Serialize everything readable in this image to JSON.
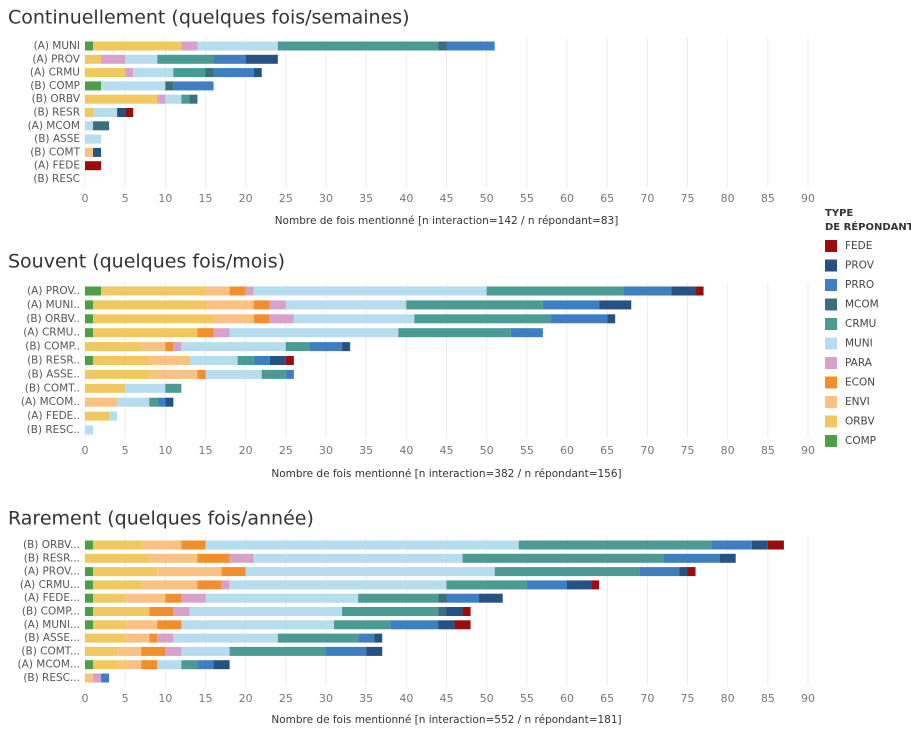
{
  "legend": {
    "title": [
      "TYPE",
      "DE RÉPONDANT"
    ],
    "series": [
      {
        "name": "FEDE",
        "color": "#9b0d0d"
      },
      {
        "name": "PROV",
        "color": "#245282"
      },
      {
        "name": "PRRO",
        "color": "#3d7fc1"
      },
      {
        "name": "MCOM",
        "color": "#3b6f7d"
      },
      {
        "name": "CRMU",
        "color": "#4a9b93"
      },
      {
        "name": "MUNI",
        "color": "#b6dcef"
      },
      {
        "name": "PARA",
        "color": "#d7a1c9"
      },
      {
        "name": "ECON",
        "color": "#f28f2c"
      },
      {
        "name": "ENVI",
        "color": "#f9c283"
      },
      {
        "name": "ORBV",
        "color": "#f1c75f"
      },
      {
        "name": "COMP",
        "color": "#4c9e47"
      }
    ]
  },
  "chart_data": [
    {
      "type": "stacked-barh",
      "title": "Continuellement (quelques fois/semaines)",
      "x_label": "Nombre de fois mentionné [n interaction=142 / n répondant=83]",
      "categories": [
        "(A) MUNI",
        "(A) PROV",
        "(A) CRMU",
        "(B) COMP",
        "(B) ORBV",
        "(B) RESR",
        "(A) MCOM",
        "(B) ASSE",
        "(B) COMT",
        "(A) FEDE",
        "(B) RESC"
      ],
      "series": [
        {
          "values": [
            0,
            0,
            0,
            0,
            0,
            1,
            0,
            0,
            0,
            2,
            0
          ]
        },
        {
          "values": [
            0,
            4,
            1,
            0,
            0,
            1,
            0,
            0,
            1,
            0,
            0
          ]
        },
        {
          "values": [
            6,
            4,
            5,
            5,
            0,
            0,
            0,
            0,
            0,
            0,
            0
          ]
        },
        {
          "values": [
            1,
            0,
            1,
            1,
            1,
            0,
            2,
            0,
            0,
            0,
            0
          ]
        },
        {
          "values": [
            20,
            7,
            4,
            0,
            1,
            0,
            0,
            0,
            0,
            0,
            0
          ]
        },
        {
          "values": [
            10,
            4,
            5,
            8,
            2,
            3,
            1,
            2,
            0,
            0,
            0
          ]
        },
        {
          "values": [
            2,
            3,
            1,
            0,
            1,
            0,
            0,
            0,
            0,
            0,
            0
          ]
        },
        {
          "values": [
            0,
            0,
            0,
            0,
            0,
            0,
            0,
            0,
            0,
            0,
            0
          ]
        },
        {
          "values": [
            0,
            0,
            0,
            0,
            0,
            0,
            0,
            0,
            1,
            0,
            0
          ]
        },
        {
          "values": [
            11,
            2,
            5,
            0,
            9,
            1,
            0,
            0,
            0,
            0,
            0
          ]
        },
        {
          "values": [
            1,
            0,
            0,
            2,
            0,
            0,
            0,
            0,
            0,
            0,
            0
          ]
        }
      ],
      "xlim": [
        0,
        90
      ],
      "xticks": [
        0,
        5,
        10,
        15,
        20,
        25,
        30,
        35,
        40,
        45,
        50,
        55,
        60,
        65,
        70,
        75,
        80,
        85,
        90
      ],
      "grid": true
    },
    {
      "type": "stacked-barh",
      "title": "Souvent (quelques fois/mois)",
      "x_label": "Nombre de fois mentionné [n interaction=382 / n répondant=156]",
      "categories": [
        "(A) PROV..",
        "(A) MUNI..",
        "(B) ORBV..",
        "(A) CRMU..",
        "(B) COMP..",
        "(B) RESR..",
        "(B) ASSE..",
        "(B) COMT..",
        "(A) MCOM..",
        "(A) FEDE..",
        "(B) RESC.."
      ],
      "series": [
        {
          "values": [
            1,
            0,
            0,
            0,
            0,
            1,
            0,
            0,
            0,
            0,
            0
          ]
        },
        {
          "values": [
            3,
            4,
            1,
            0,
            1,
            2,
            0,
            0,
            1,
            0,
            0
          ]
        },
        {
          "values": [
            6,
            7,
            7,
            4,
            4,
            2,
            1,
            0,
            1,
            0,
            0
          ]
        },
        {
          "values": [
            0,
            0,
            0,
            0,
            0,
            0,
            0,
            0,
            0,
            0,
            0
          ]
        },
        {
          "values": [
            17,
            17,
            17,
            14,
            3,
            2,
            3,
            2,
            1,
            0,
            0
          ]
        },
        {
          "values": [
            29,
            15,
            15,
            21,
            13,
            6,
            7,
            5,
            4,
            1,
            1
          ]
        },
        {
          "values": [
            1,
            2,
            3,
            2,
            1,
            0,
            0,
            0,
            0,
            0,
            0
          ]
        },
        {
          "values": [
            2,
            2,
            2,
            2,
            1,
            0,
            1,
            0,
            0,
            0,
            0
          ]
        },
        {
          "values": [
            3,
            6,
            5,
            0,
            3,
            5,
            6,
            0,
            4,
            0,
            0
          ]
        },
        {
          "values": [
            13,
            14,
            15,
            13,
            7,
            7,
            8,
            5,
            0,
            3,
            0
          ]
        },
        {
          "values": [
            2,
            1,
            1,
            1,
            0,
            1,
            0,
            0,
            0,
            0,
            0
          ]
        }
      ],
      "xlim": [
        0,
        90
      ],
      "xticks": [
        0,
        5,
        10,
        15,
        20,
        25,
        30,
        35,
        40,
        45,
        50,
        55,
        60,
        65,
        70,
        75,
        80,
        85,
        90
      ],
      "grid": true
    },
    {
      "type": "stacked-barh",
      "title": "Rarement (quelques fois/année)",
      "x_label": "Nombre de fois mentionné [n interaction=552 / n répondant=181]",
      "categories": [
        "(B) ORBV...",
        "(B) RESR...",
        "(A) PROV...",
        "(A) CRMU...",
        "(A) FEDE...",
        "(B) COMP...",
        "(A) MUNI...",
        "(B) ASSE...",
        "(B) COMT...",
        "(A) MCOM...",
        "(B) RESC..."
      ],
      "series": [
        {
          "values": [
            2,
            0,
            1,
            1,
            0,
            1,
            2,
            0,
            0,
            0,
            0
          ]
        },
        {
          "values": [
            2,
            2,
            1,
            3,
            3,
            2,
            2,
            1,
            2,
            2,
            0
          ]
        },
        {
          "values": [
            5,
            7,
            5,
            5,
            4,
            0,
            6,
            2,
            5,
            2,
            1
          ]
        },
        {
          "values": [
            0,
            0,
            0,
            0,
            1,
            1,
            0,
            0,
            0,
            0,
            0
          ]
        },
        {
          "values": [
            24,
            25,
            18,
            10,
            10,
            12,
            7,
            10,
            12,
            2,
            0
          ]
        },
        {
          "values": [
            39,
            26,
            31,
            27,
            19,
            19,
            19,
            13,
            6,
            3,
            0
          ]
        },
        {
          "values": [
            0,
            3,
            0,
            1,
            3,
            2,
            0,
            2,
            2,
            0,
            1
          ]
        },
        {
          "values": [
            3,
            4,
            3,
            3,
            2,
            3,
            3,
            1,
            3,
            2,
            0
          ]
        },
        {
          "values": [
            5,
            6,
            8,
            7,
            5,
            0,
            4,
            3,
            3,
            3,
            1
          ]
        },
        {
          "values": [
            6,
            8,
            8,
            6,
            4,
            7,
            4,
            5,
            4,
            3,
            0
          ]
        },
        {
          "values": [
            1,
            0,
            1,
            1,
            1,
            1,
            1,
            0,
            0,
            1,
            0
          ]
        }
      ],
      "xlim": [
        0,
        90
      ],
      "xticks": [
        0,
        5,
        10,
        15,
        20,
        25,
        30,
        35,
        40,
        45,
        50,
        55,
        60,
        65,
        70,
        75,
        80,
        85,
        90
      ],
      "grid": true
    }
  ]
}
